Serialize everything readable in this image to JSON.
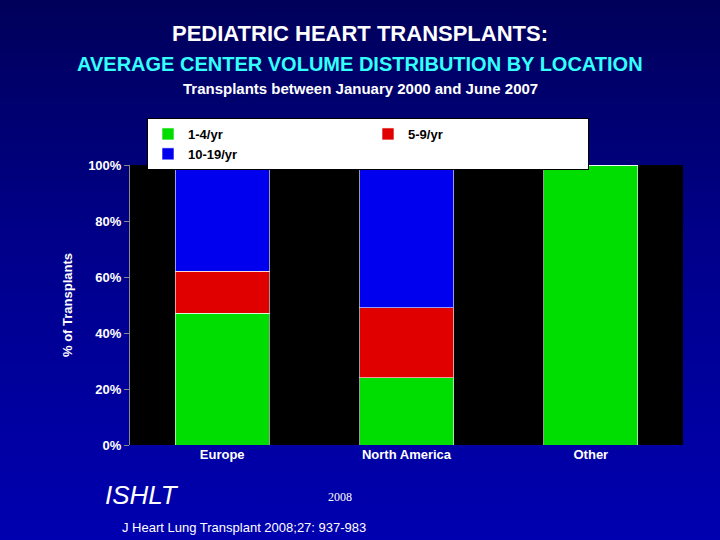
{
  "chart_data": {
    "type": "bar",
    "stacked": true,
    "title": "PEDIATRIC HEART TRANSPLANTS:",
    "subtitle": "AVERAGE CENTER VOLUME DISTRIBUTION BY LOCATION",
    "annotations": [
      "Transplants between January 2000 and June 2007",
      "ISHLT",
      "2008",
      "J Heart Lung Transplant 2008;27: 937-983"
    ],
    "y_label": "% of Transplants",
    "categories": [
      "Europe",
      "North America",
      "Other"
    ],
    "series": [
      {
        "name": "1-4/yr",
        "color": "#00dd00",
        "values": [
          47,
          24,
          100
        ]
      },
      {
        "name": "5-9/yr",
        "color": "#e00000",
        "values": [
          15,
          25,
          0
        ]
      },
      {
        "name": "10-19/yr",
        "color": "#0000ee",
        "values": [
          38,
          51,
          0
        ]
      }
    ],
    "ylim": [
      0,
      100
    ],
    "yticks": [
      {
        "value": 0,
        "label": "0%"
      },
      {
        "value": 20,
        "label": "20%"
      },
      {
        "value": 40,
        "label": "40%"
      },
      {
        "value": 60,
        "label": "60%"
      },
      {
        "value": 80,
        "label": "80%"
      },
      {
        "value": 100,
        "label": "100%"
      }
    ],
    "grid": false,
    "legend": "top"
  }
}
